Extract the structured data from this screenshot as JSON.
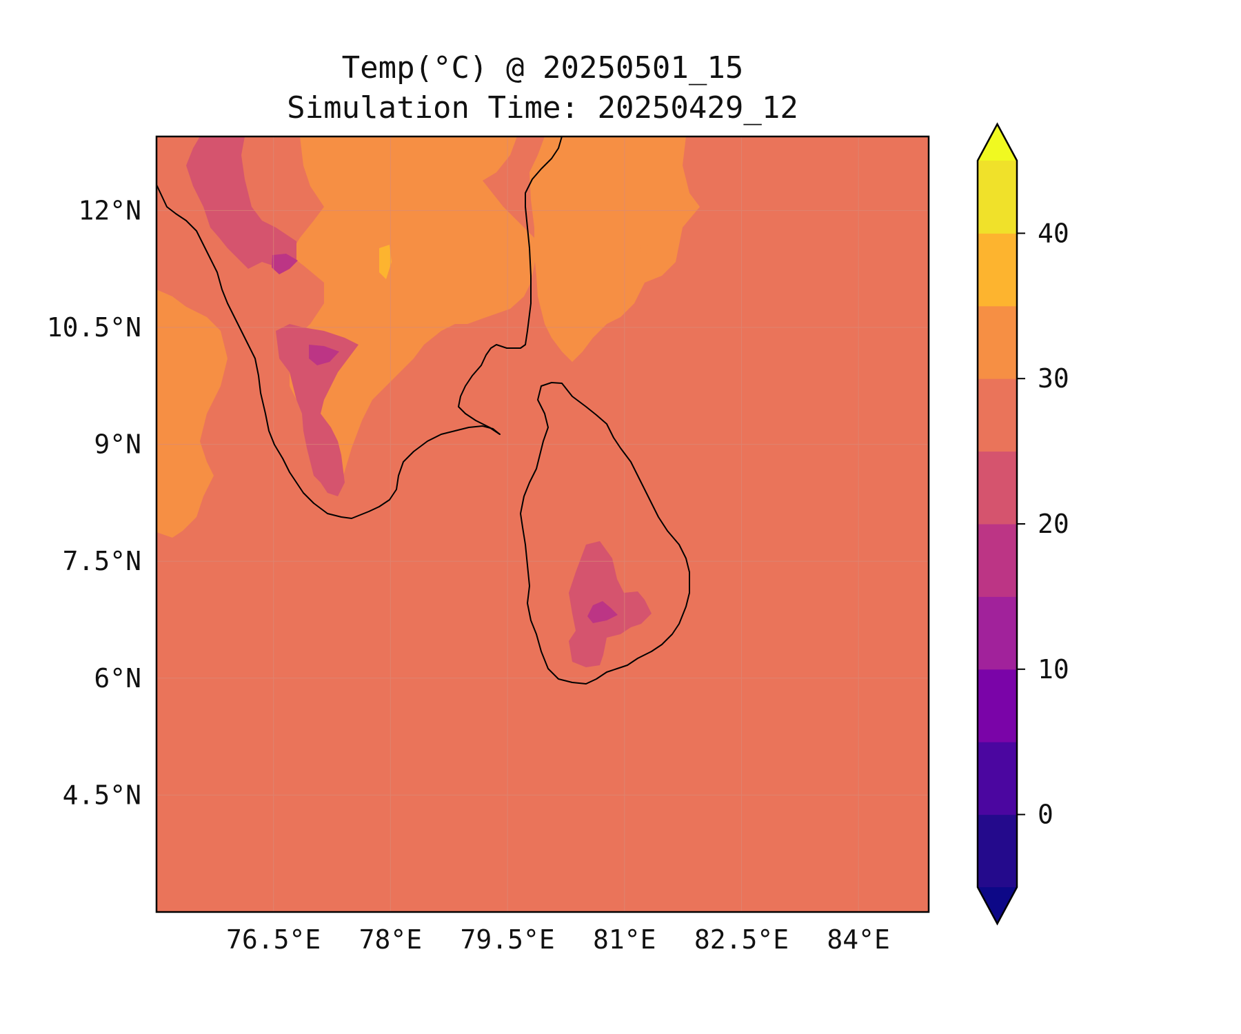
{
  "title": {
    "line1": "Temp(°C) @ 20250501_15",
    "line2": "Simulation Time: 20250429_12"
  },
  "map": {
    "extent": {
      "lon": [
        75.0,
        84.9
      ],
      "lat": [
        3.0,
        12.95
      ]
    },
    "background_color": "#ea745a",
    "grid": true,
    "coastline_color": "#000000",
    "x_ticks": [
      "76.5°E",
      "78°E",
      "79.5°E",
      "81°E",
      "82.5°E",
      "84°E"
    ],
    "y_ticks": [
      "4.5°N",
      "6°N",
      "7.5°N",
      "9°N",
      "10.5°N",
      "12°N"
    ]
  },
  "colorbar": {
    "levels": [
      -5,
      0,
      5,
      10,
      15,
      20,
      25,
      30,
      35,
      40,
      45
    ],
    "colors": [
      "#240a8c",
      "#4b06a0",
      "#7a04a8",
      "#a1229b",
      "#bc3585",
      "#d5546e",
      "#ea745a",
      "#f68f44",
      "#fdb42f",
      "#f0e12a"
    ],
    "under_color": "#0d0887",
    "over_color": "#f0f921",
    "tick_labels": [
      "0",
      "10",
      "20",
      "30",
      "40"
    ],
    "extend": "both"
  }
}
